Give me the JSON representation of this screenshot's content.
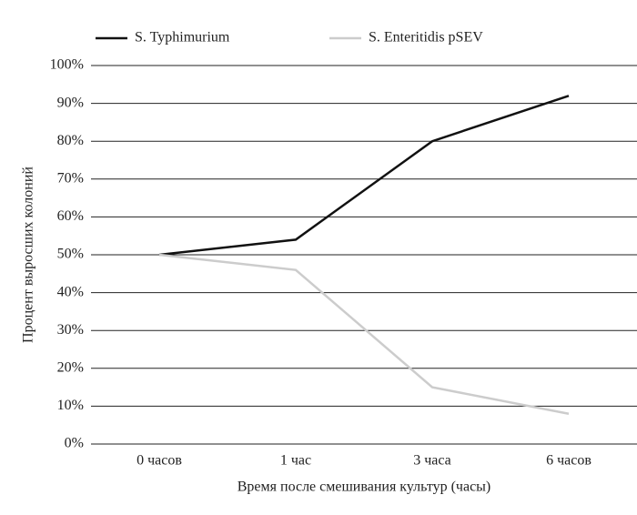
{
  "chart_data": {
    "type": "line",
    "x_label": "Время после смешивания культур (часы)",
    "y_label": "Процент выросших колоний",
    "categories": [
      "0 часов",
      "1 час",
      "3 часа",
      "6 часов"
    ],
    "series": [
      {
        "name": "S. Typhimurium",
        "color": "#111111",
        "values": [
          50,
          54,
          80,
          92
        ]
      },
      {
        "name": "S. Enteritidis pSEV",
        "color": "#cccccc",
        "values": [
          50,
          46,
          15,
          8
        ]
      }
    ],
    "ylim": [
      0,
      100
    ],
    "yticks": [
      {
        "value": 0,
        "label": "0%"
      },
      {
        "value": 10,
        "label": "10%"
      },
      {
        "value": 20,
        "label": "20%"
      },
      {
        "value": 30,
        "label": "30%"
      },
      {
        "value": 40,
        "label": "40%"
      },
      {
        "value": 50,
        "label": "50%"
      },
      {
        "value": 60,
        "label": "60%"
      },
      {
        "value": 70,
        "label": "70%"
      },
      {
        "value": 80,
        "label": "80%"
      },
      {
        "value": 90,
        "label": "90%"
      },
      {
        "value": 100,
        "label": "100%"
      }
    ],
    "grid": true,
    "legend": "top"
  }
}
